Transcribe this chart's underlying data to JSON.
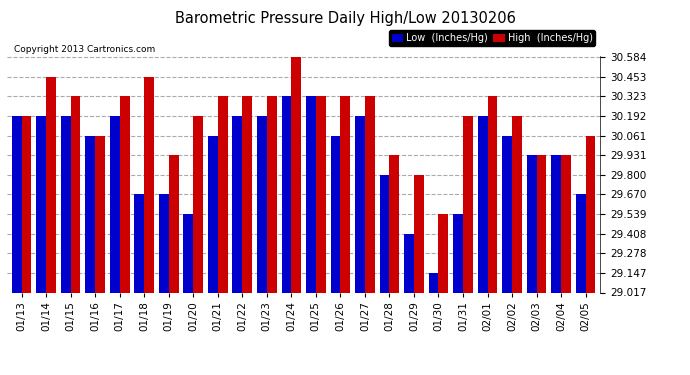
{
  "title": "Barometric Pressure Daily High/Low 20130206",
  "copyright": "Copyright 2013 Cartronics.com",
  "dates": [
    "01/13",
    "01/14",
    "01/15",
    "01/16",
    "01/17",
    "01/18",
    "01/19",
    "01/20",
    "01/21",
    "01/22",
    "01/23",
    "01/24",
    "01/25",
    "01/26",
    "01/27",
    "01/28",
    "01/29",
    "01/30",
    "01/31",
    "02/01",
    "02/02",
    "02/03",
    "02/04",
    "02/05"
  ],
  "low": [
    30.192,
    30.192,
    30.192,
    30.061,
    30.192,
    29.67,
    29.67,
    29.539,
    30.061,
    30.192,
    30.192,
    30.323,
    30.323,
    30.061,
    30.192,
    29.8,
    29.408,
    29.147,
    29.539,
    30.192,
    30.061,
    29.931,
    29.931,
    29.67
  ],
  "high": [
    30.192,
    30.453,
    30.323,
    30.061,
    30.323,
    30.453,
    29.931,
    30.192,
    30.323,
    30.323,
    30.323,
    30.584,
    30.323,
    30.323,
    30.323,
    29.931,
    29.8,
    29.539,
    30.192,
    30.323,
    30.192,
    29.931,
    29.931,
    30.061
  ],
  "ymin": 29.017,
  "ymax": 30.584,
  "yticks": [
    29.017,
    29.147,
    29.278,
    29.408,
    29.539,
    29.67,
    29.8,
    29.931,
    30.061,
    30.192,
    30.323,
    30.453,
    30.584
  ],
  "low_color": "#0000cc",
  "high_color": "#cc0000",
  "bg_color": "#ffffff",
  "plot_bg": "#ffffff",
  "grid_color": "#aaaaaa",
  "title_color": "#000000",
  "tick_color": "#000000",
  "copyright_color": "#000000",
  "legend_low_bg": "#0000cc",
  "legend_high_bg": "#cc0000"
}
